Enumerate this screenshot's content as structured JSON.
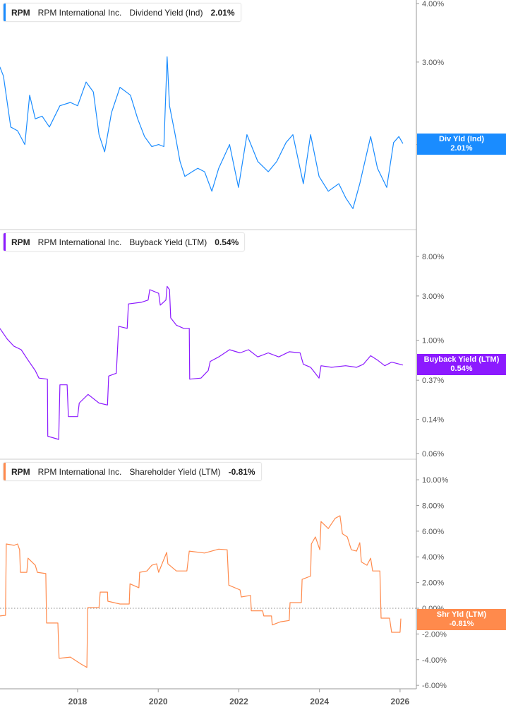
{
  "colors": {
    "dividend": "#1a8cff",
    "buyback": "#8c1aff",
    "shareholder": "#ff8a4c",
    "axis": "#999999",
    "grid_zero": "#888888"
  },
  "panels": [
    {
      "ticker": "RPM",
      "company": "RPM International Inc.",
      "metric": "Dividend Yield (Ind)",
      "value": "2.01%",
      "tag_label": "Div Yld (Ind)",
      "tag_value": "2.01%"
    },
    {
      "ticker": "RPM",
      "company": "RPM International Inc.",
      "metric": "Buyback Yield (LTM)",
      "value": "0.54%",
      "tag_label": "Buyback Yield (LTM)",
      "tag_value": "0.54%"
    },
    {
      "ticker": "RPM",
      "company": "RPM International Inc.",
      "metric": "Shareholder Yield (LTM)",
      "value": "-0.81%",
      "tag_label": "Shr Yld (LTM)",
      "tag_value": "-0.81%"
    }
  ],
  "chart_data": [
    {
      "type": "line",
      "scale": "log",
      "series_name": "Dividend Yield (Ind)",
      "color": "#1a8cff",
      "yticks": [
        "4.00%",
        "3.00%",
        "2.00%"
      ],
      "ytick_values": [
        4,
        3,
        2
      ],
      "points": [
        [
          2016.07,
          2.93
        ],
        [
          2016.16,
          2.8
        ],
        [
          2016.34,
          2.18
        ],
        [
          2016.51,
          2.14
        ],
        [
          2016.69,
          2.0
        ],
        [
          2016.81,
          2.55
        ],
        [
          2016.95,
          2.27
        ],
        [
          2017.12,
          2.3
        ],
        [
          2017.3,
          2.18
        ],
        [
          2017.56,
          2.42
        ],
        [
          2017.82,
          2.46
        ],
        [
          2018.0,
          2.42
        ],
        [
          2018.21,
          2.72
        ],
        [
          2018.39,
          2.59
        ],
        [
          2018.53,
          2.1
        ],
        [
          2018.67,
          1.93
        ],
        [
          2018.84,
          2.34
        ],
        [
          2019.05,
          2.65
        ],
        [
          2019.31,
          2.55
        ],
        [
          2019.49,
          2.27
        ],
        [
          2019.66,
          2.08
        ],
        [
          2019.84,
          1.98
        ],
        [
          2020.01,
          2.0
        ],
        [
          2020.14,
          1.98
        ],
        [
          2020.22,
          3.08
        ],
        [
          2020.28,
          2.42
        ],
        [
          2020.42,
          2.1
        ],
        [
          2020.54,
          1.84
        ],
        [
          2020.66,
          1.71
        ],
        [
          2020.84,
          1.75
        ],
        [
          2020.98,
          1.78
        ],
        [
          2021.15,
          1.75
        ],
        [
          2021.33,
          1.59
        ],
        [
          2021.5,
          1.78
        ],
        [
          2021.77,
          2.0
        ],
        [
          2021.99,
          1.62
        ],
        [
          2022.2,
          2.1
        ],
        [
          2022.47,
          1.84
        ],
        [
          2022.73,
          1.75
        ],
        [
          2022.94,
          1.84
        ],
        [
          2023.17,
          2.02
        ],
        [
          2023.34,
          2.1
        ],
        [
          2023.6,
          1.65
        ],
        [
          2023.78,
          2.1
        ],
        [
          2023.99,
          1.71
        ],
        [
          2024.22,
          1.59
        ],
        [
          2024.48,
          1.65
        ],
        [
          2024.65,
          1.54
        ],
        [
          2024.83,
          1.46
        ],
        [
          2025.0,
          1.65
        ],
        [
          2025.27,
          2.08
        ],
        [
          2025.44,
          1.78
        ],
        [
          2025.67,
          1.62
        ],
        [
          2025.84,
          2.02
        ],
        [
          2025.97,
          2.08
        ],
        [
          2026.07,
          2.01
        ]
      ]
    },
    {
      "type": "line",
      "scale": "log",
      "series_name": "Buyback Yield (LTM)",
      "color": "#8c1aff",
      "yticks": [
        "8.00%",
        "3.00%",
        "1.00%",
        "0.37%",
        "0.14%",
        "0.06%"
      ],
      "ytick_values": [
        8,
        3,
        1,
        0.37,
        0.14,
        0.06
      ],
      "points": [
        [
          2016.07,
          1.34
        ],
        [
          2016.25,
          1.03
        ],
        [
          2016.42,
          0.86
        ],
        [
          2016.6,
          0.79
        ],
        [
          2016.77,
          0.61
        ],
        [
          2016.95,
          0.47
        ],
        [
          2017.04,
          0.39
        ],
        [
          2017.25,
          0.38
        ],
        [
          2017.26,
          0.092
        ],
        [
          2017.53,
          0.085
        ],
        [
          2017.56,
          0.33
        ],
        [
          2017.74,
          0.33
        ],
        [
          2017.77,
          0.15
        ],
        [
          2018.0,
          0.15
        ],
        [
          2018.04,
          0.21
        ],
        [
          2018.26,
          0.26
        ],
        [
          2018.53,
          0.21
        ],
        [
          2018.74,
          0.2
        ],
        [
          2018.77,
          0.41
        ],
        [
          2018.96,
          0.44
        ],
        [
          2019.02,
          1.41
        ],
        [
          2019.23,
          1.34
        ],
        [
          2019.26,
          2.46
        ],
        [
          2019.58,
          2.56
        ],
        [
          2019.75,
          2.71
        ],
        [
          2019.79,
          3.51
        ],
        [
          2020.01,
          3.2
        ],
        [
          2020.05,
          2.39
        ],
        [
          2020.19,
          2.71
        ],
        [
          2020.22,
          3.8
        ],
        [
          2020.28,
          3.5
        ],
        [
          2020.31,
          1.74
        ],
        [
          2020.45,
          1.45
        ],
        [
          2020.63,
          1.34
        ],
        [
          2020.77,
          1.34
        ],
        [
          2020.78,
          0.38
        ],
        [
          2021.06,
          0.39
        ],
        [
          2021.24,
          0.47
        ],
        [
          2021.29,
          0.59
        ],
        [
          2021.5,
          0.66
        ],
        [
          2021.77,
          0.79
        ],
        [
          2022.03,
          0.73
        ],
        [
          2022.24,
          0.79
        ],
        [
          2022.47,
          0.66
        ],
        [
          2022.73,
          0.73
        ],
        [
          2022.99,
          0.66
        ],
        [
          2023.25,
          0.75
        ],
        [
          2023.52,
          0.73
        ],
        [
          2023.6,
          0.55
        ],
        [
          2023.78,
          0.51
        ],
        [
          2023.99,
          0.39
        ],
        [
          2024.04,
          0.53
        ],
        [
          2024.3,
          0.51
        ],
        [
          2024.65,
          0.53
        ],
        [
          2024.92,
          0.51
        ],
        [
          2025.09,
          0.55
        ],
        [
          2025.27,
          0.68
        ],
        [
          2025.44,
          0.61
        ],
        [
          2025.62,
          0.53
        ],
        [
          2025.79,
          0.58
        ],
        [
          2026.07,
          0.54
        ]
      ]
    },
    {
      "type": "line",
      "scale": "linear",
      "series_name": "Shareholder Yield (LTM)",
      "color": "#ff8a4c",
      "yticks": [
        "10.00%",
        "8.00%",
        "6.00%",
        "4.00%",
        "2.00%",
        "0.00%",
        "-2.00%",
        "-4.00%",
        "-6.00%"
      ],
      "ytick_values": [
        10,
        8,
        6,
        4,
        2,
        0,
        -2,
        -4,
        -6
      ],
      "zero_line": true,
      "points": [
        [
          2016.07,
          -0.6
        ],
        [
          2016.21,
          -0.55
        ],
        [
          2016.23,
          5.0
        ],
        [
          2016.42,
          4.9
        ],
        [
          2016.51,
          5.0
        ],
        [
          2016.56,
          4.55
        ],
        [
          2016.58,
          2.8
        ],
        [
          2016.74,
          2.8
        ],
        [
          2016.77,
          3.9
        ],
        [
          2016.95,
          3.35
        ],
        [
          2017.0,
          2.8
        ],
        [
          2017.21,
          2.7
        ],
        [
          2017.23,
          -1.15
        ],
        [
          2017.51,
          -1.15
        ],
        [
          2017.54,
          -3.9
        ],
        [
          2017.82,
          -3.8
        ],
        [
          2018.09,
          -4.35
        ],
        [
          2018.23,
          -4.6
        ],
        [
          2018.25,
          0.05
        ],
        [
          2018.53,
          0.05
        ],
        [
          2018.56,
          1.26
        ],
        [
          2018.74,
          1.26
        ],
        [
          2018.75,
          0.55
        ],
        [
          2019.05,
          0.33
        ],
        [
          2019.28,
          0.33
        ],
        [
          2019.3,
          1.9
        ],
        [
          2019.52,
          1.6
        ],
        [
          2019.54,
          2.8
        ],
        [
          2019.72,
          2.9
        ],
        [
          2019.84,
          3.35
        ],
        [
          2019.96,
          3.46
        ],
        [
          2020.01,
          2.8
        ],
        [
          2020.21,
          4.35
        ],
        [
          2020.24,
          3.46
        ],
        [
          2020.45,
          2.9
        ],
        [
          2020.71,
          2.9
        ],
        [
          2020.77,
          4.45
        ],
        [
          2021.15,
          4.3
        ],
        [
          2021.5,
          4.6
        ],
        [
          2021.71,
          4.55
        ],
        [
          2021.75,
          1.8
        ],
        [
          2022.03,
          1.43
        ],
        [
          2022.06,
          0.88
        ],
        [
          2022.29,
          1.0
        ],
        [
          2022.31,
          -0.2
        ],
        [
          2022.59,
          -0.2
        ],
        [
          2022.62,
          -0.6
        ],
        [
          2022.81,
          -0.6
        ],
        [
          2022.83,
          -1.3
        ],
        [
          2023.04,
          -1.05
        ],
        [
          2023.25,
          -0.95
        ],
        [
          2023.27,
          0.44
        ],
        [
          2023.55,
          0.44
        ],
        [
          2023.57,
          2.25
        ],
        [
          2023.78,
          2.5
        ],
        [
          2023.8,
          5.0
        ],
        [
          2023.9,
          5.55
        ],
        [
          2024.01,
          4.55
        ],
        [
          2024.04,
          6.75
        ],
        [
          2024.22,
          6.2
        ],
        [
          2024.39,
          7.0
        ],
        [
          2024.51,
          7.2
        ],
        [
          2024.57,
          5.8
        ],
        [
          2024.69,
          5.55
        ],
        [
          2024.79,
          4.55
        ],
        [
          2024.92,
          4.45
        ],
        [
          2025.0,
          5.1
        ],
        [
          2025.04,
          3.6
        ],
        [
          2025.18,
          3.35
        ],
        [
          2025.27,
          3.9
        ],
        [
          2025.32,
          2.9
        ],
        [
          2025.5,
          2.9
        ],
        [
          2025.53,
          -0.77
        ],
        [
          2025.74,
          -0.77
        ],
        [
          2025.79,
          -1.87
        ],
        [
          2026.0,
          -1.87
        ],
        [
          2026.02,
          -0.8
        ]
      ]
    }
  ],
  "x_axis": {
    "ticks": [
      "2018",
      "2020",
      "2022",
      "2024",
      "2026"
    ],
    "tick_values": [
      2018,
      2020,
      2022,
      2024,
      2026
    ]
  }
}
